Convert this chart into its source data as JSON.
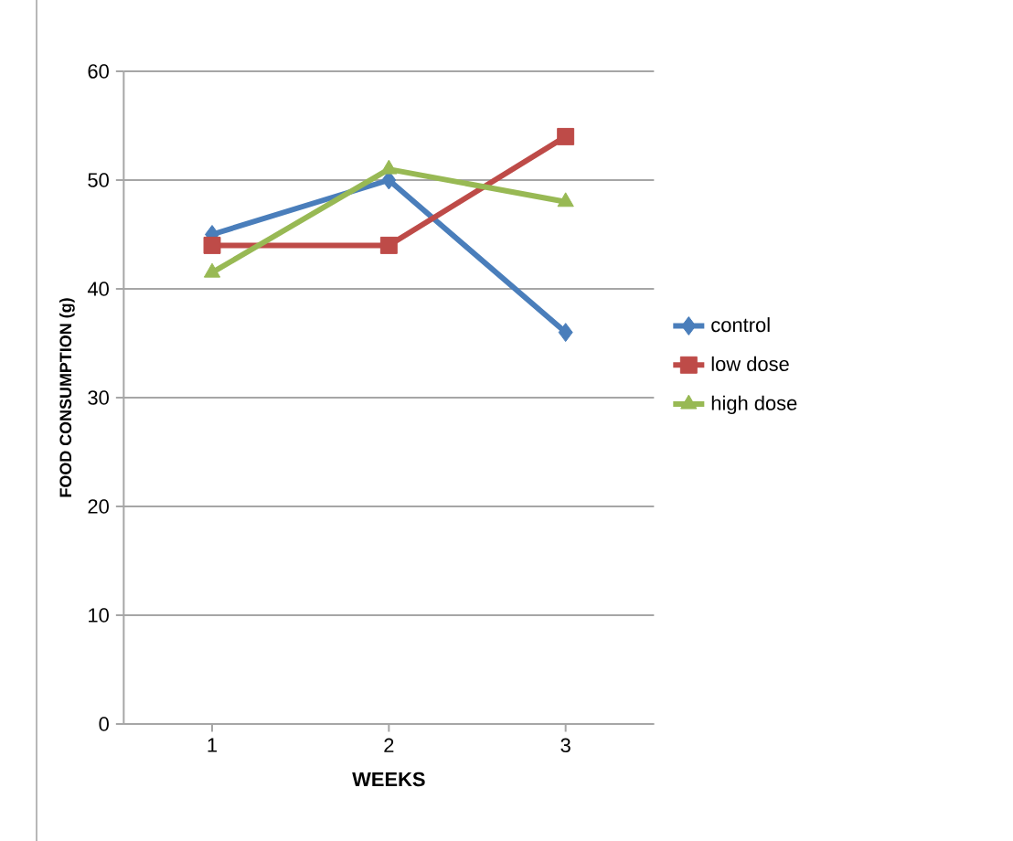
{
  "chart_data": {
    "type": "line",
    "xlabel": "WEEKS",
    "ylabel": "FOOD CONSUMPTION  (g)",
    "categories": [
      "1",
      "2",
      "3"
    ],
    "series": [
      {
        "name": "control",
        "color": "#4a7ebb",
        "values": [
          45,
          50,
          36
        ],
        "marker": "diamond"
      },
      {
        "name": "low dose",
        "color": "#be4b48",
        "values": [
          44,
          44,
          54
        ],
        "marker": "square"
      },
      {
        "name": "high dose",
        "color": "#98b954",
        "values": [
          41.5,
          51,
          48
        ],
        "marker": "triangle"
      }
    ],
    "ylim": [
      0,
      60
    ],
    "yticks": [
      0,
      10,
      20,
      30,
      40,
      50,
      60
    ],
    "grid": "y",
    "legend": "right"
  }
}
